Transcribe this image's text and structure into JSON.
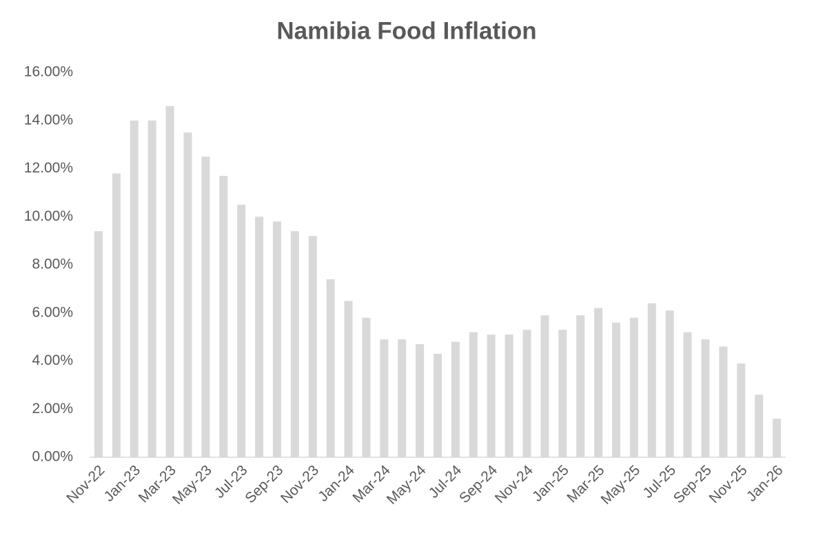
{
  "chart_data": {
    "type": "bar",
    "title": "Namibia Food Inflation",
    "categories": [
      "Nov-22",
      null,
      "Jan-23",
      null,
      "Mar-23",
      null,
      "May-23",
      null,
      "Jul-23",
      null,
      "Sep-23",
      null,
      "Nov-23",
      null,
      "Jan-24",
      null,
      "Mar-24",
      null,
      "May-24",
      null,
      "Jul-24",
      null,
      "Sep-24",
      null,
      "Nov-24",
      null,
      "Jan-25",
      null,
      "Mar-25",
      null,
      "May-25",
      null,
      "Jul-25",
      null,
      "Sep-25",
      null,
      "Nov-25",
      null,
      "Jan-26"
    ],
    "values": [
      9.4,
      11.8,
      14.0,
      14.0,
      14.6,
      13.5,
      12.5,
      11.7,
      10.5,
      10.0,
      9.8,
      9.4,
      9.2,
      7.4,
      6.5,
      5.8,
      4.9,
      4.9,
      4.7,
      4.3,
      4.8,
      5.2,
      5.1,
      5.1,
      5.3,
      5.9,
      5.3,
      5.9,
      6.2,
      5.6,
      5.8,
      6.4,
      6.1,
      5.2,
      4.9,
      4.6,
      3.9,
      2.6,
      1.6
    ],
    "color": "#d9d9d9",
    "ylim": [
      0,
      16
    ],
    "yticks": [
      {
        "value": 0,
        "label": "0.00%"
      },
      {
        "value": 2,
        "label": "2.00%"
      },
      {
        "value": 4,
        "label": "4.00%"
      },
      {
        "value": 6,
        "label": "6.00%"
      },
      {
        "value": 8,
        "label": "8.00%"
      },
      {
        "value": 10,
        "label": "10.00%"
      },
      {
        "value": 12,
        "label": "12.00%"
      },
      {
        "value": 14,
        "label": "14.00%"
      },
      {
        "value": 16,
        "label": "16.00%"
      }
    ],
    "grid": false
  }
}
